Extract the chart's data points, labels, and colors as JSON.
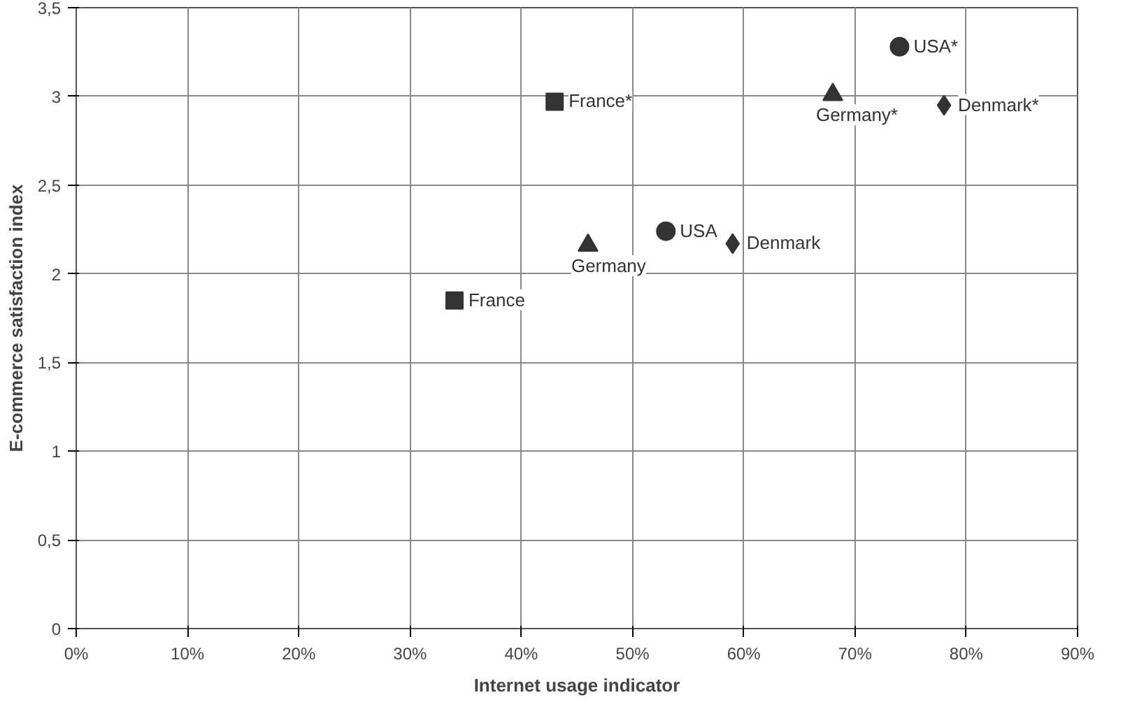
{
  "chart_data": {
    "type": "scatter",
    "xlabel": "Internet usage indicator",
    "ylabel": "E-commerce satisfaction index",
    "xlim": [
      0,
      90
    ],
    "ylim": [
      0,
      3.5
    ],
    "xticks": [
      {
        "value": 0,
        "label": "0%"
      },
      {
        "value": 10,
        "label": "10%"
      },
      {
        "value": 20,
        "label": "20%"
      },
      {
        "value": 30,
        "label": "30%"
      },
      {
        "value": 40,
        "label": "40%"
      },
      {
        "value": 50,
        "label": "50%"
      },
      {
        "value": 60,
        "label": "60%"
      },
      {
        "value": 70,
        "label": "70%"
      },
      {
        "value": 80,
        "label": "80%"
      },
      {
        "value": 90,
        "label": "90%"
      }
    ],
    "yticks": [
      0,
      {
        "value": 0.5,
        "label": "0,5"
      },
      1,
      {
        "value": 1.5,
        "label": "1,5"
      },
      2,
      {
        "value": 2.5,
        "label": "2,5"
      },
      3,
      {
        "value": 3.5,
        "label": "3,5"
      }
    ],
    "grid": true,
    "series": [
      {
        "name": "France",
        "color": "#333333",
        "marker": "square",
        "x": [
          34
        ],
        "values": [
          1.85
        ]
      },
      {
        "name": "Germany",
        "color": "#333333",
        "marker": "triangle",
        "x": [
          46
        ],
        "values": [
          2.16
        ]
      },
      {
        "name": "USA",
        "color": "#333333",
        "marker": "circle",
        "x": [
          53
        ],
        "values": [
          2.24
        ]
      },
      {
        "name": "Denmark",
        "color": "#333333",
        "marker": "diamond",
        "x": [
          59
        ],
        "values": [
          2.17
        ]
      },
      {
        "name": "France*",
        "color": "#333333",
        "marker": "square",
        "x": [
          43
        ],
        "values": [
          2.97
        ]
      },
      {
        "name": "Germany*",
        "color": "#333333",
        "marker": "triangle",
        "x": [
          68
        ],
        "values": [
          3.01
        ]
      },
      {
        "name": "USA*",
        "color": "#333333",
        "marker": "circle",
        "x": [
          74
        ],
        "values": [
          3.28
        ]
      },
      {
        "name": "Denmark*",
        "color": "#333333",
        "marker": "diamond",
        "x": [
          78
        ],
        "values": [
          2.95
        ]
      }
    ]
  }
}
